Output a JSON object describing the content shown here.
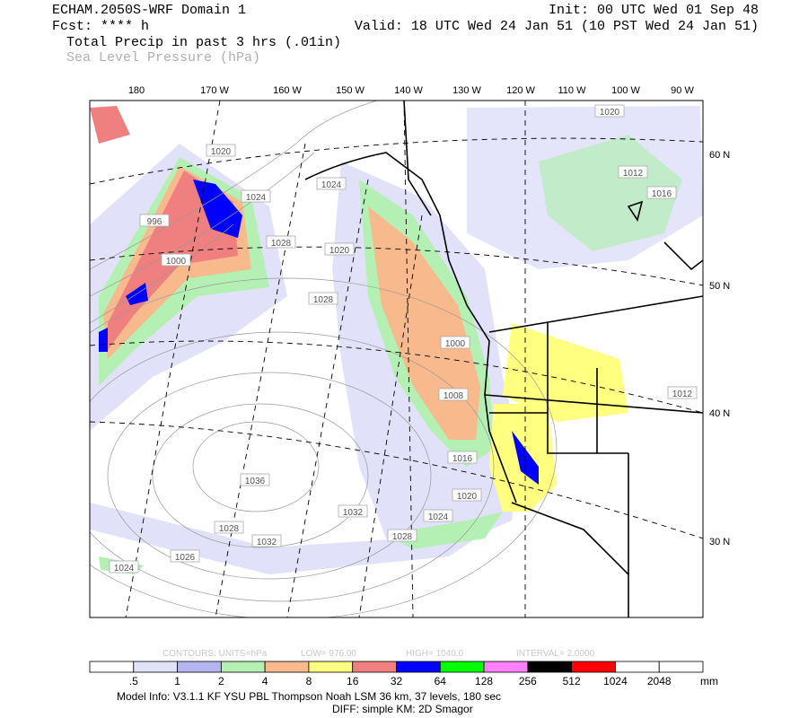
{
  "header": {
    "model": "ECHAM.2050S-WRF Domain 1",
    "forecast": "Fcst: **** h",
    "init": "Init: 00 UTC Wed 01 Sep 48",
    "valid": "Valid: 18 UTC Wed 24 Jan 51 (10 PST Wed 24 Jan 51)",
    "field_primary": "Total Precip in past 3 hrs (.01in)",
    "field_secondary": "Sea Level Pressure (hPa)"
  },
  "map": {
    "lon_labels": [
      "180",
      "170 W",
      "160 W",
      "150 W",
      "140 W",
      "130 W",
      "120 W",
      "110 W",
      "100 W",
      "90 W"
    ],
    "lat_labels": [
      "60 N",
      "50 N",
      "40 N",
      "30 N"
    ],
    "contour_labels": [
      "1020",
      "1024",
      "1028",
      "996",
      "1000",
      "1028",
      "1020",
      "1024",
      "1036",
      "1032",
      "1028",
      "1032",
      "1028",
      "1024",
      "1020",
      "1016",
      "1008",
      "1000",
      "1020",
      "1012",
      "1016",
      "1012",
      "1024",
      "1026"
    ]
  },
  "contour_info": {
    "units": "CONTOURS:  UNITS=hPa",
    "low": "LOW=  976.00",
    "high": "HIGH=  1040.0",
    "interval": "INTERVAL=    2.0000"
  },
  "colorbar": {
    "labels": [
      ".5",
      "1",
      "2",
      "4",
      "8",
      "16",
      "32",
      "64",
      "128",
      "256",
      "512",
      "1024",
      "2048"
    ],
    "unit": "mm",
    "colors": [
      "#ffffff",
      "#e1e1fa",
      "#b4b4f0",
      "#b4f0b4",
      "#f8b98c",
      "#ffff80",
      "#f08080",
      "#0000ff",
      "#00ff00",
      "#ff80ff",
      "#000000",
      "#ff0000",
      "#ffffff",
      "#ffffff"
    ]
  },
  "footer": {
    "model_info": "Model Info: V3.1.1    KF      YSU PBL   Thompson     Noah LSM   36 km,    37 levels,   180 sec",
    "diff": "DIFF: simple KM: 2D Smagor"
  }
}
